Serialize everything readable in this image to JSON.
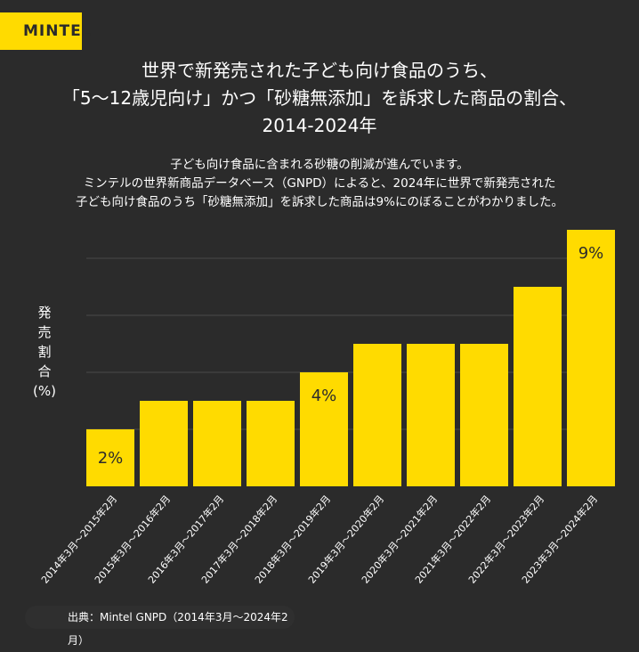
{
  "logo": "MINTEL",
  "title": [
    "世界で新発売された子ども向け食品のうち、",
    "「5〜12歳児向け」かつ「砂糖無添加」を訴求した商品の割合、",
    "2014-2024年"
  ],
  "subtitle": [
    "子ども向け食品に含まれる砂糖の削減が進んでいます。",
    "ミンテルの世界新商品データベース（GNPD）によると、2024年に世界で新発売された",
    "子ども向け食品のうち「砂糖無添加」を訴求した商品は9%にのぼることがわかりました。"
  ],
  "ylabel": [
    "発",
    "売",
    "割",
    "合",
    "(%)"
  ],
  "source": "出典：Mintel GNPD（2014年3月〜2024年2月）",
  "colors": {
    "bar": "#FFDB00",
    "background": "#2b2b2b",
    "grid": "#4a4a4a"
  },
  "chart_data": {
    "type": "bar",
    "title": "世界で新発売された子ども向け食品のうち、「5〜12歳児向け」かつ「砂糖無添加」を訴求した商品の割合、2014-2024年",
    "xlabel": "",
    "ylabel": "発売割合(%)",
    "ylim": [
      0,
      9
    ],
    "grid": true,
    "categories": [
      "2014年3月〜2015年2月",
      "2015年3月〜2016年2月",
      "2016年3月〜2017年2月",
      "2017年3月〜2018年2月",
      "2018年3月〜2019年2月",
      "2019年3月〜2020年2月",
      "2020年3月〜2021年2月",
      "2021年3月〜2022年2月",
      "2022年3月〜2023年2月",
      "2023年3月〜2024年2月"
    ],
    "values": [
      2,
      3,
      3,
      3,
      4,
      5,
      5,
      5,
      7,
      9
    ],
    "data_labels": [
      "2%",
      "",
      "",
      "",
      "4%",
      "",
      "",
      "",
      "",
      "9%"
    ]
  }
}
